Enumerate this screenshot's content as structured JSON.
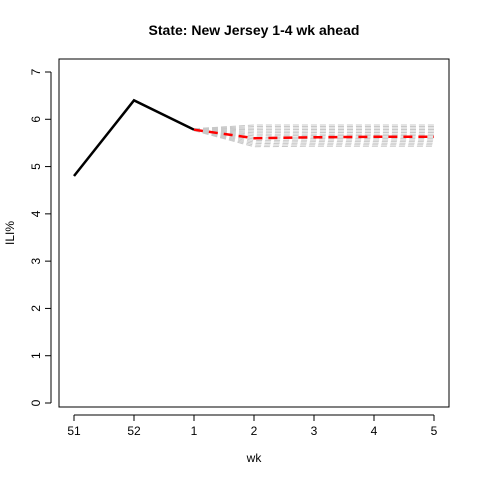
{
  "chart_data": {
    "type": "line",
    "title": "State: New Jersey 1-4 wk ahead",
    "xlabel": "wk",
    "ylabel": "ILI%",
    "x_tick_labels": [
      "51",
      "52",
      "1",
      "2",
      "3",
      "4",
      "5"
    ],
    "y_ticks": [
      0,
      1,
      2,
      3,
      4,
      5,
      6,
      7
    ],
    "ylim": [
      0,
      7
    ],
    "grid": false,
    "legend": "none",
    "observed": {
      "color": "#000000",
      "points": [
        {
          "x": "51",
          "y": 4.8
        },
        {
          "x": "52",
          "y": 6.4
        },
        {
          "x": "1",
          "y": 5.78
        }
      ]
    },
    "forecast": {
      "color": "#ff0000",
      "points": [
        {
          "x": "1",
          "y": 5.78
        },
        {
          "x": "2",
          "y": 5.6
        },
        {
          "x": "3",
          "y": 5.62
        },
        {
          "x": "4",
          "y": 5.63
        },
        {
          "x": "5",
          "y": 5.63
        }
      ]
    },
    "interval_color": "#c8c8c8",
    "interval_upper": [
      {
        "x": "1",
        "y": 5.8
      },
      {
        "x": "2",
        "y": 5.88
      },
      {
        "x": "3",
        "y": 5.88
      },
      {
        "x": "4",
        "y": 5.88
      },
      {
        "x": "5",
        "y": 5.88
      }
    ],
    "interval_lower": [
      {
        "x": "1",
        "y": 5.76
      },
      {
        "x": "2",
        "y": 5.42
      },
      {
        "x": "3",
        "y": 5.43
      },
      {
        "x": "4",
        "y": 5.43
      },
      {
        "x": "5",
        "y": 5.43
      }
    ]
  }
}
